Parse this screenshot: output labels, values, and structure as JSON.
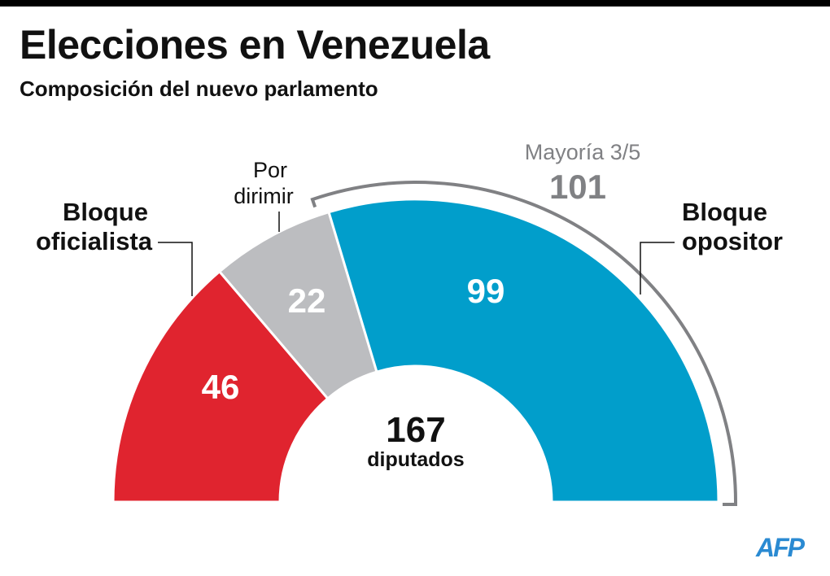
{
  "title": "Elecciones en Venezuela",
  "subtitle": "Composición del nuevo parlamento",
  "chart_data": {
    "type": "pie",
    "variant": "semicircle",
    "total": 167,
    "total_label": "diputados",
    "slices": [
      {
        "name": "Bloque oficialista",
        "value": 46,
        "color": "#e0242f"
      },
      {
        "name": "Por dirimir",
        "value": 22,
        "color": "#bcbdc0"
      },
      {
        "name": "Bloque opositor",
        "value": 99,
        "color": "#019ecb"
      }
    ],
    "threshold": {
      "label": "Mayoría 3/5",
      "value": 101,
      "color": "#808184"
    }
  },
  "labels": {
    "oficialista": [
      "Bloque",
      "oficialista"
    ],
    "dirimir": [
      "Por",
      "dirimir"
    ],
    "opositor": [
      "Bloque",
      "opositor"
    ]
  },
  "logo": "AFP",
  "logo_color": "#2a8ad2"
}
